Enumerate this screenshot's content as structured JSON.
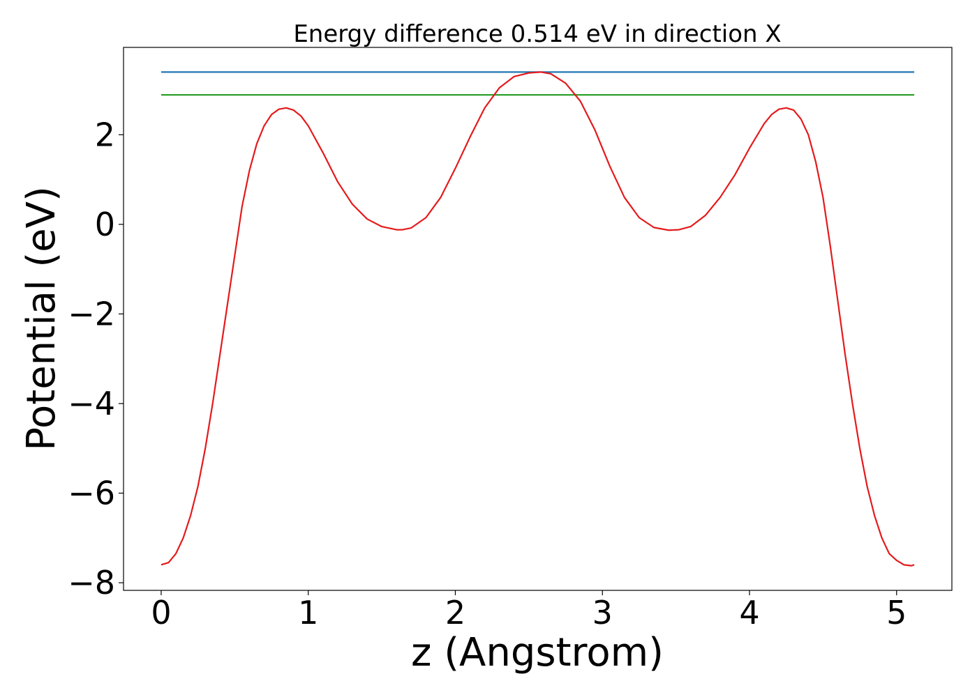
{
  "chart_data": {
    "type": "line",
    "title": "Energy difference 0.514 eV in direction X",
    "xlabel": "z (Angstrom)",
    "ylabel": "Potential (eV)",
    "xlim": [
      -0.256,
      5.376
    ],
    "ylim": [
      -8.17,
      3.95
    ],
    "xticks": [
      0,
      1,
      2,
      3,
      4,
      5
    ],
    "xtick_labels": [
      "0",
      "1",
      "2",
      "3",
      "4",
      "5"
    ],
    "yticks": [
      -8,
      -6,
      -4,
      -2,
      0,
      2
    ],
    "ytick_labels": [
      "−8",
      "−6",
      "−4",
      "−2",
      "0",
      "2"
    ],
    "grid": false,
    "series": [
      {
        "color": "#1f77b4",
        "x": [
          0,
          5.12
        ],
        "y": [
          3.4,
          3.4
        ]
      },
      {
        "color": "#2ca02c",
        "x": [
          0,
          5.12
        ],
        "y": [
          2.89,
          2.89
        ]
      },
      {
        "color": "#e41a1c",
        "x": [
          0.0,
          0.05,
          0.1,
          0.15,
          0.2,
          0.25,
          0.3,
          0.35,
          0.4,
          0.45,
          0.5,
          0.55,
          0.6,
          0.65,
          0.7,
          0.75,
          0.8,
          0.85,
          0.9,
          0.95,
          1.0,
          1.1,
          1.2,
          1.3,
          1.4,
          1.5,
          1.6,
          1.64,
          1.7,
          1.8,
          1.9,
          2.0,
          2.1,
          2.2,
          2.3,
          2.4,
          2.5,
          2.58,
          2.65,
          2.75,
          2.85,
          2.95,
          3.05,
          3.15,
          3.25,
          3.35,
          3.45,
          3.52,
          3.6,
          3.7,
          3.8,
          3.9,
          4.0,
          4.1,
          4.15,
          4.2,
          4.25,
          4.3,
          4.35,
          4.4,
          4.45,
          4.5,
          4.55,
          4.6,
          4.65,
          4.7,
          4.75,
          4.8,
          4.85,
          4.9,
          4.95,
          5.0,
          5.05,
          5.1,
          5.12
        ],
        "y": [
          -7.6,
          -7.55,
          -7.35,
          -7.0,
          -6.5,
          -5.85,
          -5.0,
          -4.0,
          -2.9,
          -1.8,
          -0.7,
          0.4,
          1.2,
          1.8,
          2.2,
          2.45,
          2.57,
          2.6,
          2.55,
          2.42,
          2.2,
          1.6,
          0.95,
          0.45,
          0.12,
          -0.05,
          -0.12,
          -0.12,
          -0.08,
          0.15,
          0.6,
          1.25,
          1.95,
          2.6,
          3.05,
          3.3,
          3.38,
          3.4,
          3.36,
          3.15,
          2.75,
          2.1,
          1.3,
          0.6,
          0.15,
          -0.07,
          -0.13,
          -0.12,
          -0.05,
          0.2,
          0.6,
          1.1,
          1.7,
          2.25,
          2.45,
          2.57,
          2.6,
          2.55,
          2.35,
          2.0,
          1.4,
          0.6,
          -0.5,
          -1.7,
          -2.9,
          -4.0,
          -5.0,
          -5.85,
          -6.5,
          -7.0,
          -7.35,
          -7.5,
          -7.6,
          -7.62,
          -7.6
        ]
      }
    ]
  }
}
